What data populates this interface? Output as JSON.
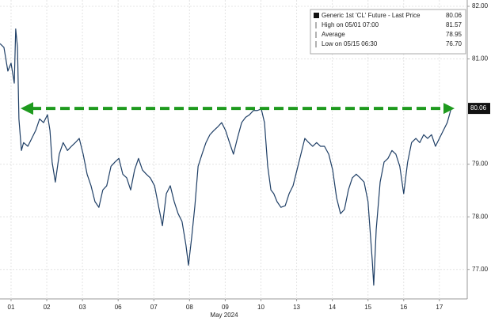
{
  "chart_data": {
    "type": "line",
    "x_label": "May 2024",
    "xlim": [
      -0.31,
      12.78
    ],
    "xticks": [
      {
        "value": 0,
        "label": "01"
      },
      {
        "value": 1,
        "label": "02"
      },
      {
        "value": 2,
        "label": "03"
      },
      {
        "value": 3,
        "label": "06"
      },
      {
        "value": 4,
        "label": "07"
      },
      {
        "value": 5,
        "label": "08"
      },
      {
        "value": 6,
        "label": "09"
      },
      {
        "value": 7,
        "label": "10"
      },
      {
        "value": 8,
        "label": "13"
      },
      {
        "value": 9,
        "label": "14"
      },
      {
        "value": 10,
        "label": "15"
      },
      {
        "value": 11,
        "label": "16"
      },
      {
        "value": 12,
        "label": "17"
      }
    ],
    "ylim": [
      76.44,
      82.12
    ],
    "yticks": [
      {
        "value": 77,
        "label": "77.00"
      },
      {
        "value": 78,
        "label": "78.00"
      },
      {
        "value": 79,
        "label": "79.00"
      },
      {
        "value": 81,
        "label": "81.00"
      },
      {
        "value": 82,
        "label": "82.00"
      }
    ],
    "grid": true,
    "x": [
      -0.31,
      -0.2,
      -0.09,
      0,
      0.09,
      0.13,
      0.18,
      0.22,
      0.29,
      0.35,
      0.47,
      0.58,
      0.69,
      0.8,
      0.91,
      1.02,
      1.09,
      1.15,
      1.24,
      1.35,
      1.46,
      1.58,
      1.69,
      1.8,
      1.91,
      2.02,
      2.13,
      2.24,
      2.35,
      2.46,
      2.57,
      2.68,
      2.8,
      2.91,
      3.02,
      3.13,
      3.24,
      3.35,
      3.46,
      3.57,
      3.68,
      3.79,
      3.9,
      4.02,
      4.13,
      4.24,
      4.35,
      4.46,
      4.57,
      4.68,
      4.79,
      4.9,
      4.97,
      5.06,
      5.15,
      5.24,
      5.35,
      5.46,
      5.57,
      5.68,
      5.79,
      5.9,
      6.01,
      6.12,
      6.23,
      6.34,
      6.46,
      6.57,
      6.68,
      6.79,
      6.9,
      7.01,
      7.1,
      7.19,
      7.28,
      7.36,
      7.45,
      7.56,
      7.68,
      7.79,
      7.9,
      8.01,
      8.12,
      8.23,
      8.34,
      8.45,
      8.56,
      8.67,
      8.78,
      8.9,
      9.01,
      9.12,
      9.23,
      9.34,
      9.45,
      9.56,
      9.67,
      9.78,
      9.89,
      10,
      10.12,
      10.16,
      10.23,
      10.34,
      10.45,
      10.56,
      10.67,
      10.78,
      10.89,
      11,
      11.11,
      11.22,
      11.34,
      11.45,
      11.56,
      11.67,
      11.78,
      11.89,
      12,
      12.11,
      12.22,
      12.33
    ],
    "series": [
      {
        "name": "Generic 1st 'CL' Future - Last Price",
        "color": "#1f3f66",
        "values": [
          81.29,
          81.22,
          80.77,
          80.92,
          80.54,
          81.57,
          81.22,
          79.86,
          79.26,
          79.41,
          79.34,
          79.49,
          79.64,
          79.86,
          79.79,
          79.94,
          79.64,
          79.04,
          78.66,
          79.19,
          79.41,
          79.26,
          79.34,
          79.41,
          79.49,
          79.19,
          78.81,
          78.59,
          78.29,
          78.18,
          78.51,
          78.59,
          78.96,
          79.04,
          79.11,
          78.81,
          78.74,
          78.51,
          78.89,
          79.11,
          78.89,
          78.81,
          78.74,
          78.59,
          78.21,
          77.83,
          78.44,
          78.59,
          78.29,
          78.06,
          77.91,
          77.46,
          77.08,
          77.61,
          78.21,
          78.96,
          79.19,
          79.41,
          79.56,
          79.64,
          79.71,
          79.79,
          79.64,
          79.41,
          79.19,
          79.49,
          79.79,
          79.89,
          79.94,
          80.02,
          80.02,
          80.05,
          79.79,
          78.96,
          78.51,
          78.44,
          78.29,
          78.18,
          78.21,
          78.44,
          78.59,
          78.89,
          79.19,
          79.49,
          79.41,
          79.34,
          79.41,
          79.34,
          79.34,
          79.19,
          78.89,
          78.36,
          78.06,
          78.14,
          78.51,
          78.74,
          78.81,
          78.74,
          78.66,
          78.29,
          77.16,
          76.7,
          77.76,
          78.66,
          79.04,
          79.11,
          79.26,
          79.19,
          78.96,
          78.44,
          79.04,
          79.41,
          79.49,
          79.41,
          79.56,
          79.49,
          79.56,
          79.34,
          79.49,
          79.64,
          79.79,
          80.06
        ]
      }
    ],
    "last_price": {
      "value": 80.06,
      "label": "80.06"
    },
    "arrow_color": "#1e9a1e",
    "stats": [
      {
        "label": "High on 05/01 07:00",
        "value": 81.57,
        "value_label": "81.57"
      },
      {
        "label": "Average",
        "value": 78.95,
        "value_label": "78.95"
      },
      {
        "label": "Low on 05/15 06:30",
        "value": 76.7,
        "value_label": "76.70"
      }
    ]
  }
}
